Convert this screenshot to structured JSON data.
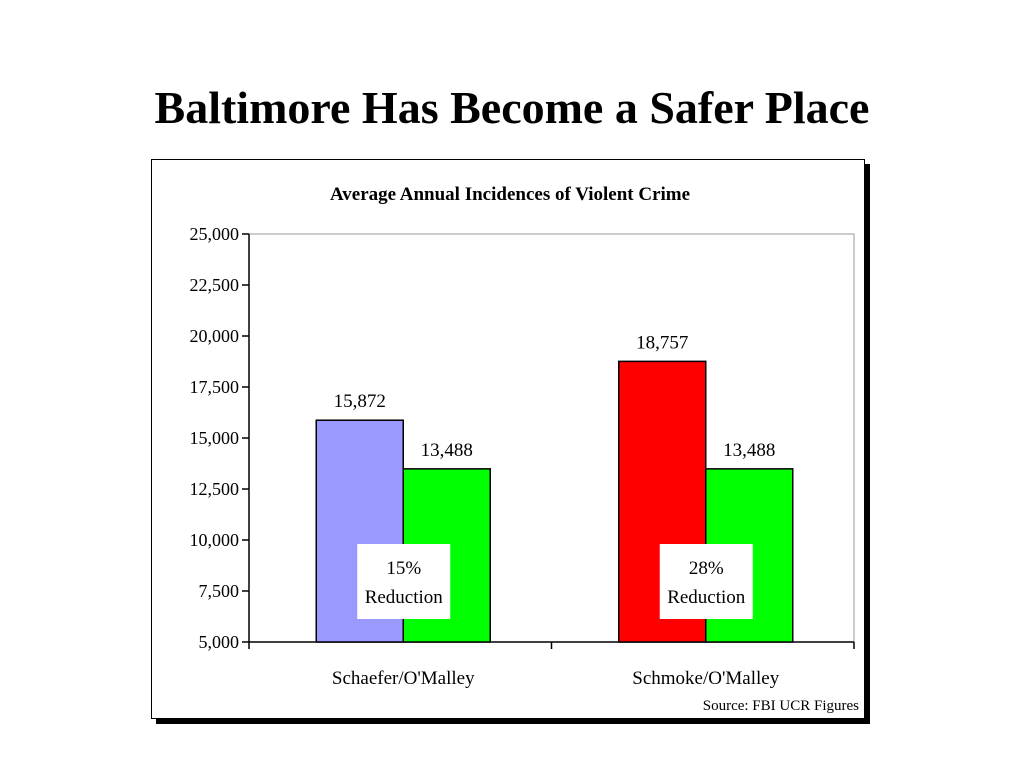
{
  "slide": {
    "title": "Baltimore Has Become a Safer Place"
  },
  "chart_data": {
    "type": "bar",
    "title": "Average Annual Incidences of Violent Crime",
    "categories": [
      "Schaefer/O'Malley",
      "Schmoke/O'Malley"
    ],
    "series": [
      {
        "values": [
          15872,
          18757
        ],
        "colors": [
          "#9999ff",
          "#ff0000"
        ]
      },
      {
        "values": [
          13488,
          13488
        ],
        "colors": [
          "#00ff00",
          "#00ff00"
        ]
      }
    ],
    "data_labels": [
      [
        "15,872",
        "18,757"
      ],
      [
        "13,488",
        "13,488"
      ]
    ],
    "ylim": [
      5000,
      25000
    ],
    "yticks": [
      5000,
      7500,
      10000,
      12500,
      15000,
      17500,
      20000,
      22500,
      25000
    ],
    "ytick_labels": [
      "5,000",
      "7,500",
      "10,000",
      "12,500",
      "15,000",
      "17,500",
      "20,000",
      "22,500",
      "25,000"
    ],
    "annotations": [
      {
        "line1": "15%",
        "line2": "Reduction"
      },
      {
        "line1": "28%",
        "line2": "Reduction"
      }
    ],
    "source": "Source: FBI UCR Figures",
    "xlabel": "",
    "ylabel": "",
    "grid": false,
    "legend": "none"
  }
}
